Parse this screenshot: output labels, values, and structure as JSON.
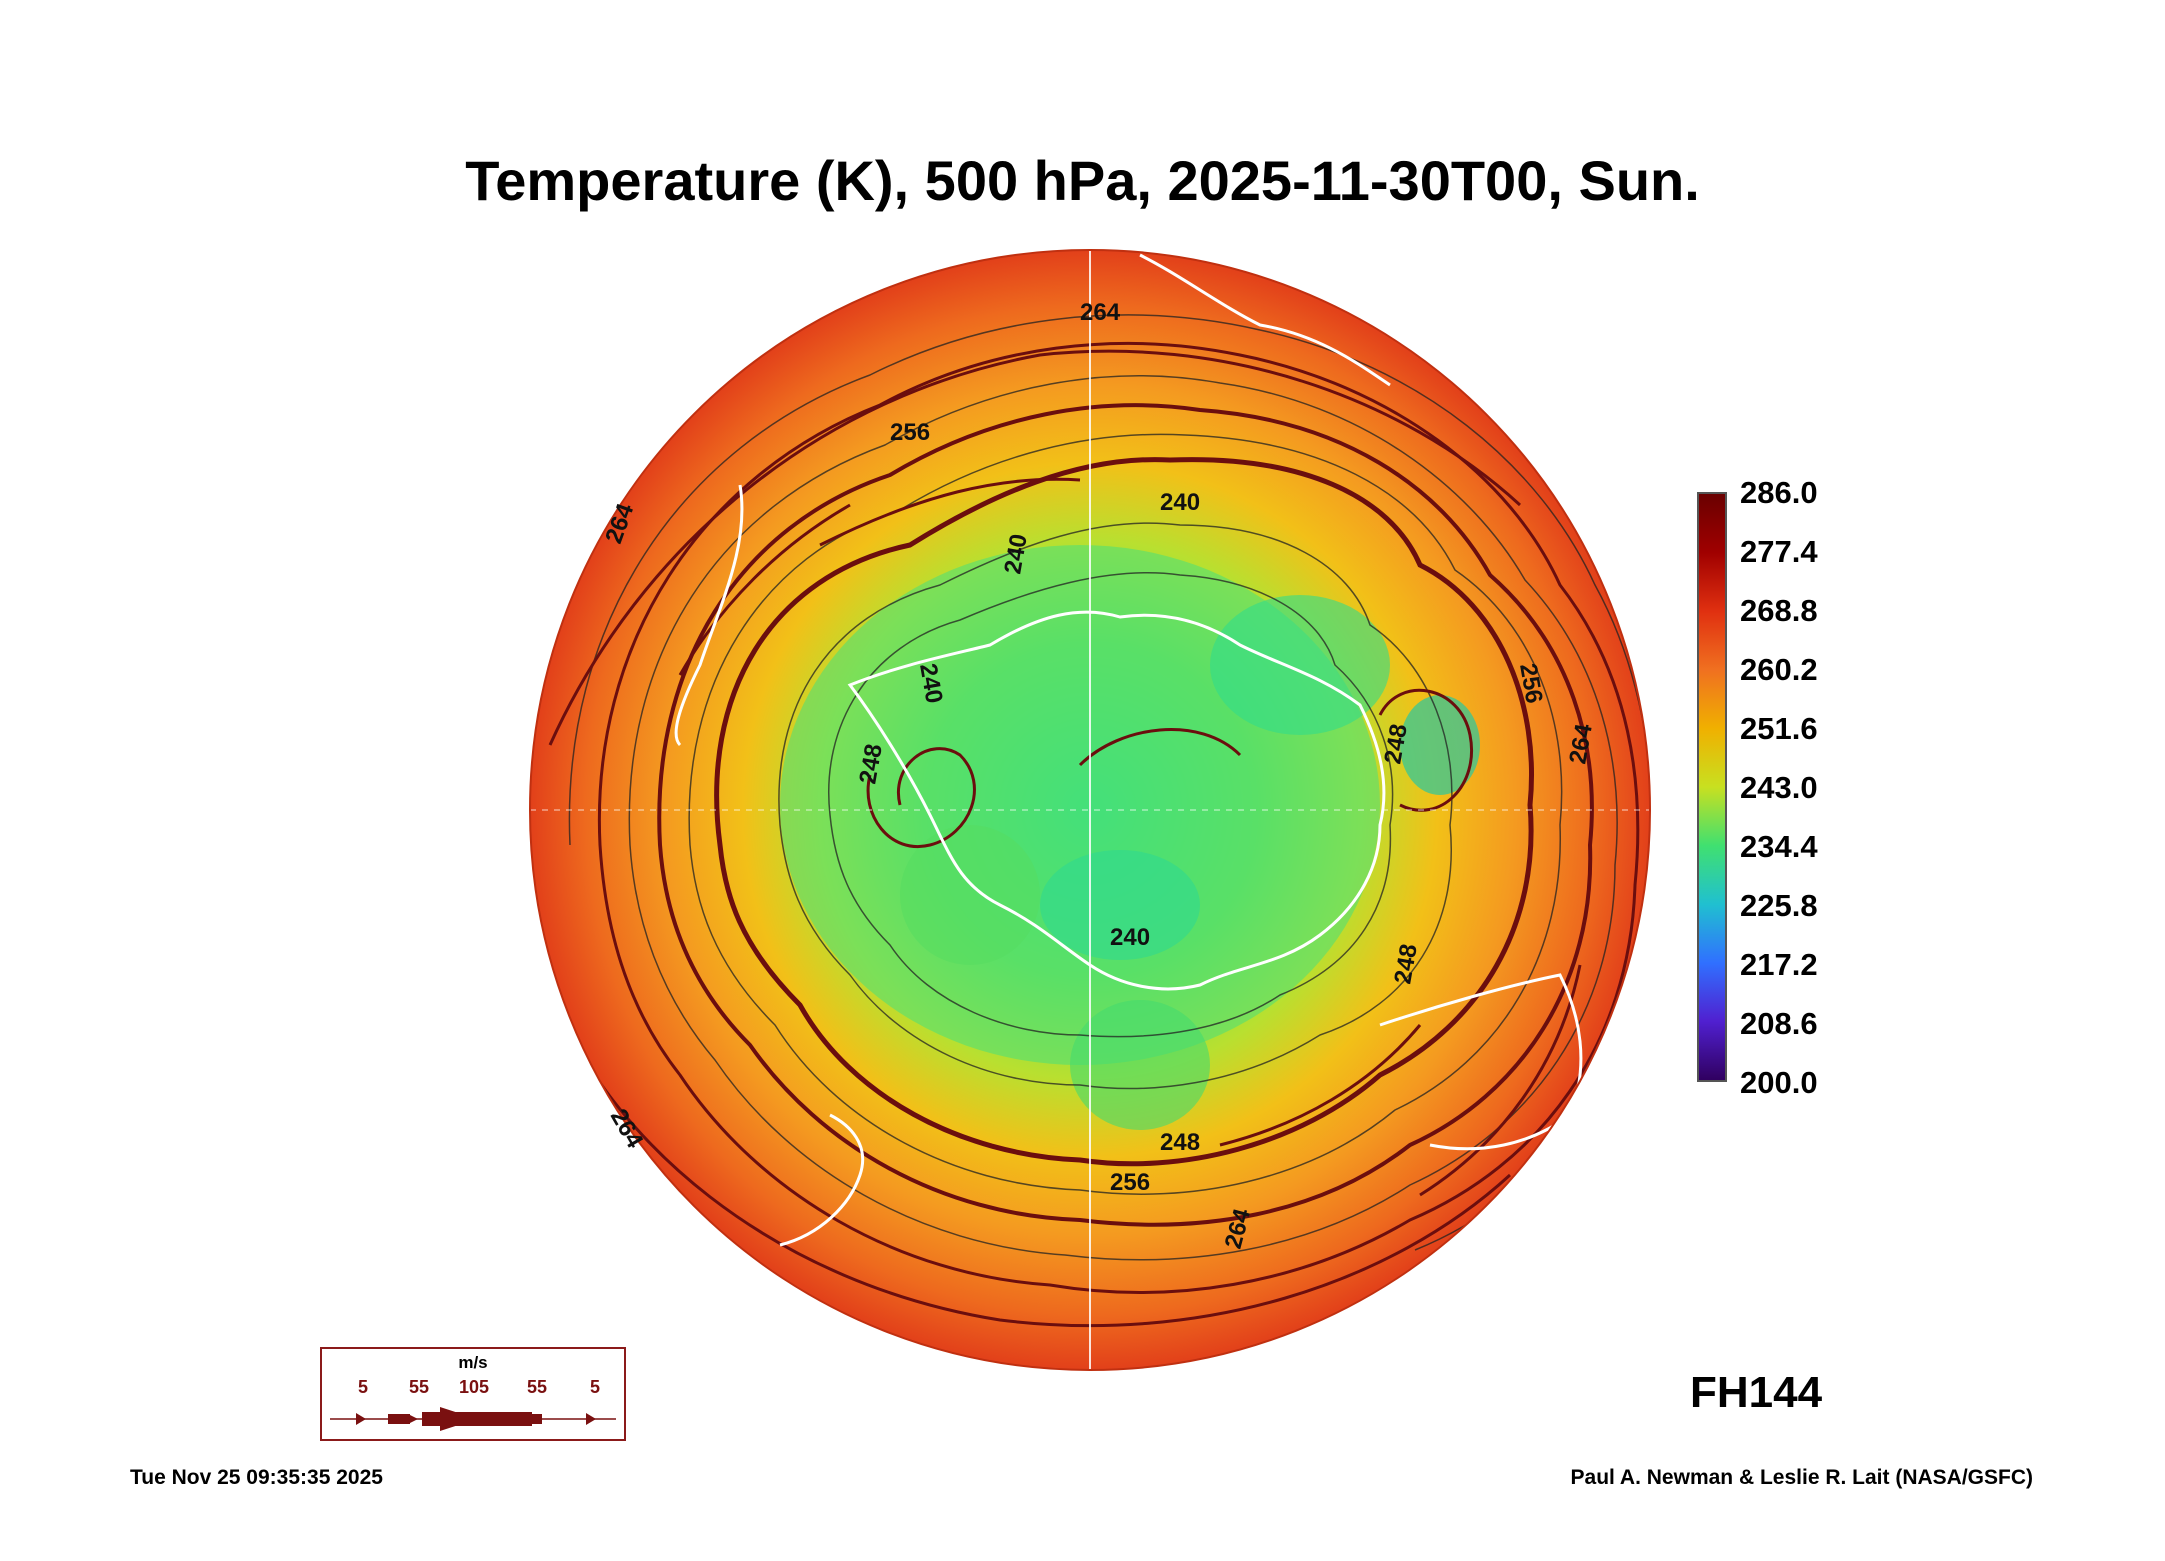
{
  "title": "Temperature (K), 500 hPa, 2025-11-30T00, Sun.",
  "forecast_hour": "FH144",
  "colorbar": {
    "labels": [
      "286.0",
      "277.4",
      "268.8",
      "260.2",
      "251.6",
      "243.0",
      "234.4",
      "225.8",
      "217.2",
      "208.6",
      "200.0"
    ],
    "colors": [
      "#6a0000",
      "#a00000",
      "#e03010",
      "#f07020",
      "#f0b000",
      "#c8e020",
      "#40e070",
      "#20c0d0",
      "#3070ff",
      "#5020d0",
      "#300060"
    ]
  },
  "contour_labels": [
    "264",
    "256",
    "240",
    "240",
    "240",
    "248",
    "240",
    "248",
    "256",
    "264",
    "248",
    "256",
    "264",
    "264",
    "264",
    "248"
  ],
  "wind_legend": {
    "unit": "m/s",
    "speeds": [
      "5",
      "55",
      "105",
      "55",
      "5"
    ]
  },
  "footer": {
    "timestamp": "Tue Nov 25 09:35:35 2025",
    "credit": "Paul A. Newman & Leslie R. Lait (NASA/GSFC)"
  },
  "colors": {
    "warm_ring": "#e84a1a",
    "mid_ring": "#f4a020",
    "cold_core": "#3ee07a",
    "streamline": "#6b0e0e",
    "coastline": "#ffffff"
  }
}
